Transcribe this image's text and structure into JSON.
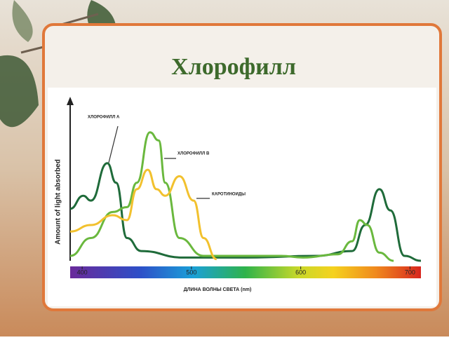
{
  "chart_data": {
    "type": "line",
    "title": "Хлорофилл",
    "x_label": "ДЛИНА ВОЛНЫ СВЕТА (nm)",
    "y_label": "Amount of light absorbed",
    "xlim": [
      389,
      710
    ],
    "ylim": [
      0,
      100
    ],
    "xticks": [
      400,
      500,
      600,
      700
    ],
    "series": [
      {
        "name": "ХЛОРОФИЛЛ А",
        "color": "#1f6b3a",
        "x": [
          389,
          401,
          408,
          423,
          431,
          441,
          454,
          492,
          550,
          614,
          647,
          659,
          672,
          682,
          695,
          710
        ],
        "values": [
          32,
          40,
          37,
          60,
          48,
          14,
          6,
          2,
          2,
          3,
          6,
          22,
          44,
          31,
          3,
          0
        ]
      },
      {
        "name": "ХЛОРОФИЛЛ В",
        "color": "#6ab83e",
        "x": [
          389,
          408,
          428,
          441,
          450,
          462,
          470,
          476,
          489,
          511,
          582,
          602,
          634,
          647,
          654,
          661,
          672,
          685
        ],
        "values": [
          3,
          14,
          30,
          33,
          48,
          79,
          74,
          48,
          14,
          3,
          3,
          2,
          4,
          12,
          25,
          22,
          5,
          0
        ]
      },
      {
        "name": "КАРОТИНОИДЫ",
        "color": "#f2c12e",
        "x": [
          389,
          408,
          428,
          441,
          450,
          460,
          468,
          476,
          489,
          502,
          511,
          523
        ],
        "values": [
          18,
          22,
          28,
          25,
          44,
          56,
          44,
          40,
          52,
          37,
          14,
          1
        ]
      }
    ]
  }
}
